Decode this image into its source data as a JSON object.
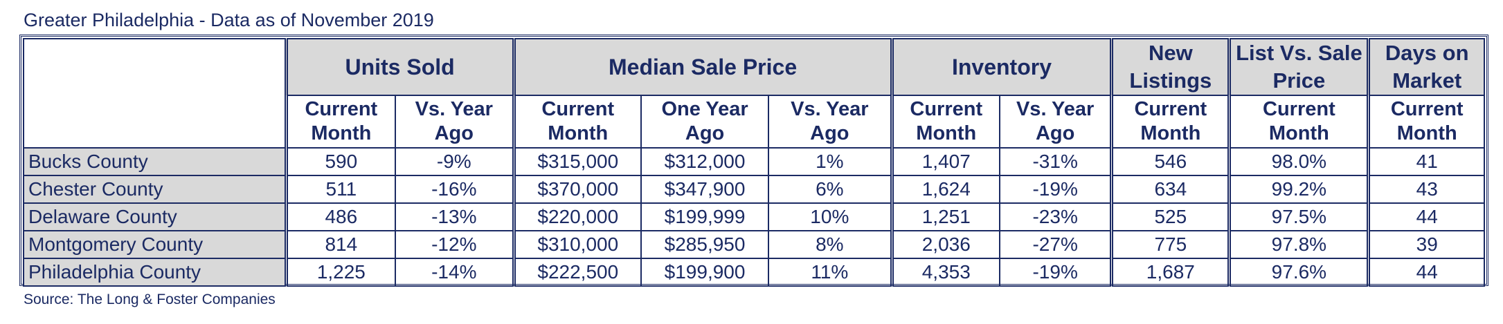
{
  "title": "Greater Philadelphia - Data as of November 2019",
  "source": "Source: The Long & Foster Companies",
  "groups": {
    "units_sold": "Units Sold",
    "median_sale_price": "Median Sale Price",
    "inventory": "Inventory",
    "new_listings": "New Listings",
    "list_vs_sale": "List Vs. Sale Price",
    "days_on_market": "Days on Market"
  },
  "subheaders": {
    "current_month": "Current Month",
    "vs_year_ago": "Vs. Year Ago",
    "one_year_ago": "One Year Ago"
  },
  "chart_data": {
    "type": "table",
    "title": "Greater Philadelphia - Data as of November 2019",
    "columns": [
      "Units Sold - Current Month",
      "Units Sold - Vs. Year Ago",
      "Median Sale Price - Current Month",
      "Median Sale Price - One Year Ago",
      "Median Sale Price - Vs. Year Ago",
      "Inventory - Current Month",
      "Inventory - Vs. Year Ago",
      "New Listings - Current Month",
      "List Vs. Sale Price - Current Month",
      "Days on Market - Current Month"
    ],
    "rows": [
      {
        "county": "Bucks County",
        "values": [
          "590",
          "-9%",
          "$315,000",
          "$312,000",
          "1%",
          "1,407",
          "-31%",
          "546",
          "98.0%",
          "41"
        ]
      },
      {
        "county": "Chester County",
        "values": [
          "511",
          "-16%",
          "$370,000",
          "$347,900",
          "6%",
          "1,624",
          "-19%",
          "634",
          "99.2%",
          "43"
        ]
      },
      {
        "county": "Delaware County",
        "values": [
          "486",
          "-13%",
          "$220,000",
          "$199,999",
          "10%",
          "1,251",
          "-23%",
          "525",
          "97.5%",
          "44"
        ]
      },
      {
        "county": "Montgomery County",
        "values": [
          "814",
          "-12%",
          "$310,000",
          "$285,950",
          "8%",
          "2,036",
          "-27%",
          "775",
          "97.8%",
          "39"
        ]
      },
      {
        "county": "Philadelphia County",
        "values": [
          "1,225",
          "-14%",
          "$222,500",
          "$199,900",
          "11%",
          "4,353",
          "-19%",
          "1,687",
          "97.6%",
          "44"
        ]
      }
    ]
  }
}
